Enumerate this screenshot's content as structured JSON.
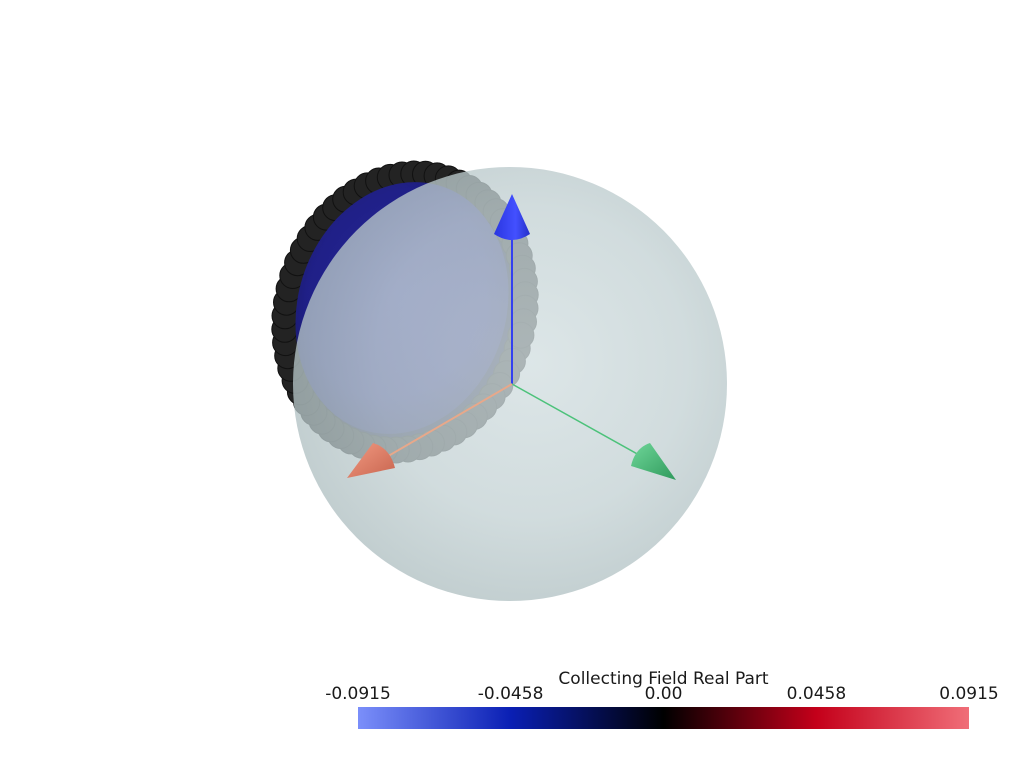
{
  "chart_data": {
    "type": "3d-scatter",
    "colorbar": {
      "title": "Collecting Field Real Part",
      "min": -0.0915,
      "max": 0.0915,
      "ticks": [
        {
          "value": -0.0915,
          "label": "-0.0915"
        },
        {
          "value": -0.0458,
          "label": "-0.0458"
        },
        {
          "value": 0.0,
          "label": "0.00"
        },
        {
          "value": 0.0458,
          "label": "0.0458"
        },
        {
          "value": 0.0915,
          "label": "0.0915"
        }
      ],
      "colormap": [
        "#7b8ffa",
        "#0a1fb4",
        "#000000",
        "#c4001a",
        "#f06e78"
      ],
      "placement": "bottom-center"
    },
    "scene": {
      "sphere_color": "#c2d0d2",
      "sphere_opacity": 0.75,
      "cap_color": "#1f1f8c",
      "point_color": "#222222",
      "axes": [
        {
          "name": "x-axis",
          "color": "#e8826a"
        },
        {
          "name": "y-axis",
          "color": "#4cc27a"
        },
        {
          "name": "z-axis",
          "color": "#3340f0"
        }
      ]
    }
  }
}
